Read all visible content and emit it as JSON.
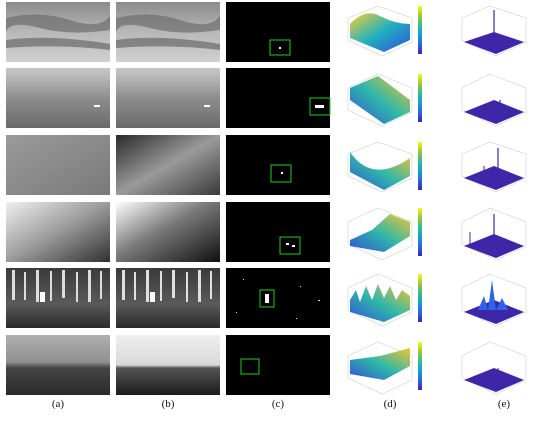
{
  "figure": {
    "panel_labels": [
      "(a)",
      "(b)",
      "(c)",
      "(d)",
      "(e)"
    ],
    "rows": [
      {
        "scene": "cloudy-sky",
        "target_box": true
      },
      {
        "scene": "hazy-sky",
        "target_box": true
      },
      {
        "scene": "uniform-sky",
        "target_box": true
      },
      {
        "scene": "sky-gradient",
        "target_box": true
      },
      {
        "scene": "forest",
        "target_box": true
      },
      {
        "scene": "sea-sky",
        "target_box": true
      }
    ],
    "colormap": [
      "#3e26a8",
      "#2f63e8",
      "#14a0d4",
      "#2fc08c",
      "#a8c23a",
      "#f5b93c",
      "#f9fb15"
    ],
    "box_color": "#22cc22"
  }
}
